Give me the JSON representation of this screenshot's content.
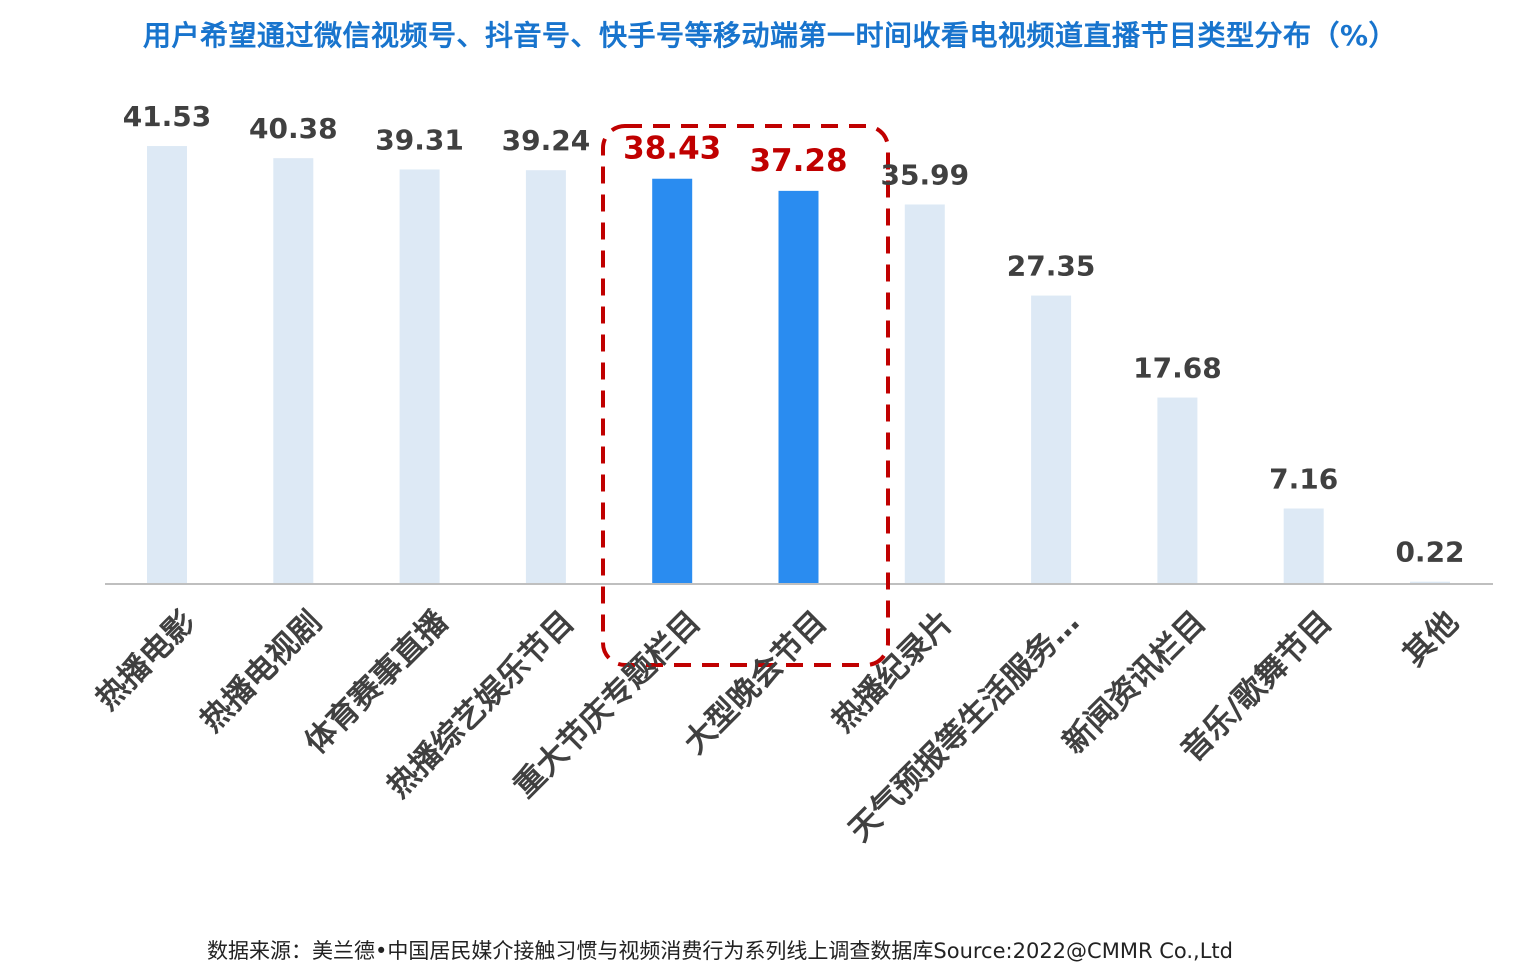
{
  "title": "用户希望通过微信视频号、抖音号、快手号等移动端第一时间收看电视频道直播节目类型分布（%）",
  "source": "数据来源：美兰德•中国居民媒介接触习惯与视频消费行为系列线上调查数据库Source:2022@CMMR Co.,Ltd",
  "colors": {
    "title": "#1874CD",
    "bar_default": "#DDE9F5",
    "bar_highlight": "#2A8CF0",
    "label_default": "#404040",
    "label_highlight": "#C00000",
    "highlight_box": "#C00000",
    "axis": "#BFBFBF"
  },
  "chart_data": {
    "type": "bar",
    "categories": [
      "热播电影",
      "热播电视剧",
      "体育赛事直播",
      "热播综艺娱乐节目",
      "重大节庆专题栏目",
      "大型晚会节目",
      "热播纪录片",
      "天气预报等生活服务…",
      "新闻资讯栏目",
      "音乐/歌舞节目",
      "其他"
    ],
    "values": [
      41.53,
      40.38,
      39.31,
      39.24,
      38.43,
      37.28,
      35.99,
      27.35,
      17.68,
      7.16,
      0.22
    ],
    "value_labels": [
      "41.53",
      "40.38",
      "39.31",
      "39.24",
      "38.43",
      "37.28",
      "35.99",
      "27.35",
      "17.68",
      "7.16",
      "0.22"
    ],
    "highlighted": [
      4,
      5
    ],
    "ylim": [
      0,
      44
    ],
    "grid": false,
    "legend": "none",
    "xlabel": "",
    "ylabel": ""
  }
}
